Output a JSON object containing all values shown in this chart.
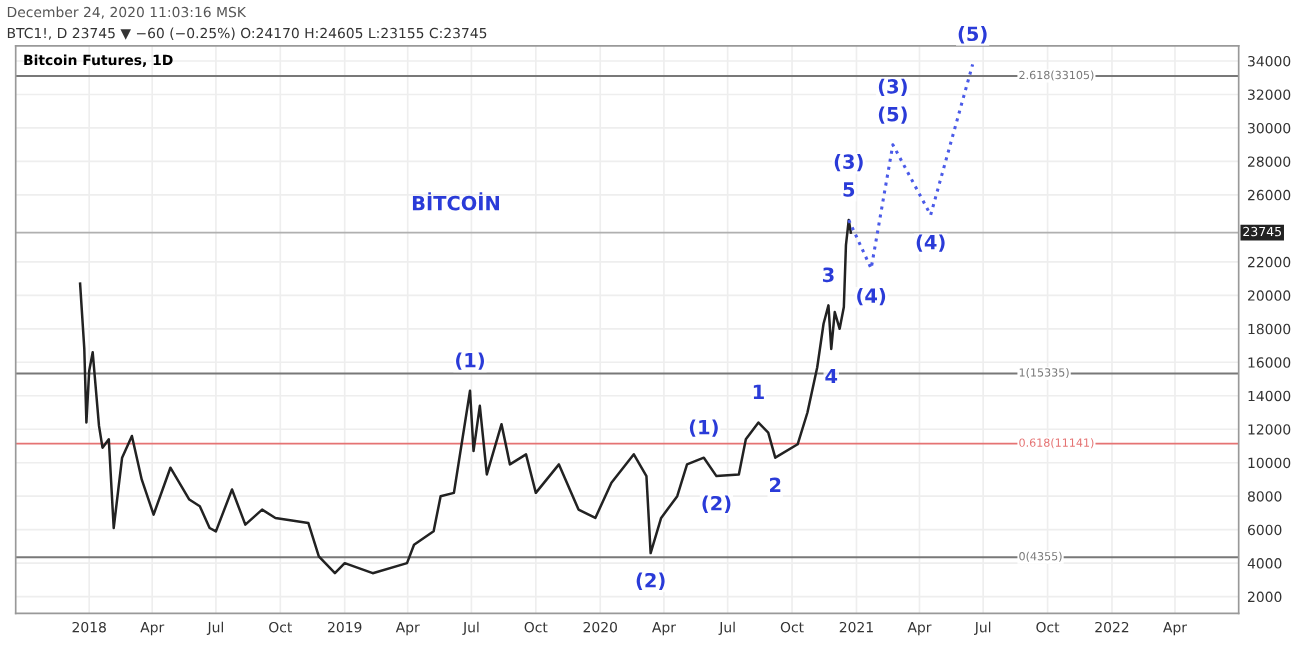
{
  "chart_data": {
    "type": "line",
    "title": "Bitcoin Futures, 1D",
    "subtitle": "BTC1!, D 23745 ▼ −60 (−0.25%) O:24170 H:24605 L:23155 C:23745",
    "xlim": [
      "2017-09-18",
      "2022-07-01"
    ],
    "ylim": [
      1000,
      34900
    ],
    "xticks": [
      {
        "value": "2018-01-01",
        "label": "2018"
      },
      {
        "value": "2018-04-01",
        "label": "Apr"
      },
      {
        "value": "2018-07-01",
        "label": "Jul"
      },
      {
        "value": "2018-10-01",
        "label": "Oct"
      },
      {
        "value": "2019-01-01",
        "label": "2019"
      },
      {
        "value": "2019-04-01",
        "label": "Apr"
      },
      {
        "value": "2019-07-01",
        "label": "Jul"
      },
      {
        "value": "2019-10-01",
        "label": "Oct"
      },
      {
        "value": "2020-01-01",
        "label": "2020"
      },
      {
        "value": "2020-04-01",
        "label": "Apr"
      },
      {
        "value": "2020-07-01",
        "label": "Jul"
      },
      {
        "value": "2020-10-01",
        "label": "Oct"
      },
      {
        "value": "2021-01-01",
        "label": "2021"
      },
      {
        "value": "2021-04-01",
        "label": "Apr"
      },
      {
        "value": "2021-07-01",
        "label": "Jul"
      },
      {
        "value": "2021-10-01",
        "label": "Oct"
      },
      {
        "value": "2022-01-01",
        "label": "2022"
      },
      {
        "value": "2022-04-01",
        "label": "Apr"
      }
    ],
    "yticks": [
      2000,
      4000,
      6000,
      8000,
      10000,
      12000,
      14000,
      16000,
      18000,
      20000,
      22000,
      26000,
      28000,
      30000,
      32000,
      34000
    ],
    "grid": true,
    "series": [
      {
        "color": "#222222",
        "line_style": "solid",
        "x": [
          "2017-12-19",
          "2017-12-25",
          "2017-12-28",
          "2018-01-01",
          "2018-01-06",
          "2018-01-15",
          "2018-01-20",
          "2018-01-29",
          "2018-02-05",
          "2018-02-17",
          "2018-03-03",
          "2018-03-17",
          "2018-04-03",
          "2018-04-27",
          "2018-05-24",
          "2018-06-08",
          "2018-06-22",
          "2018-07-01",
          "2018-07-24",
          "2018-08-12",
          "2018-09-05",
          "2018-09-24",
          "2018-11-10",
          "2018-11-25",
          "2018-12-18",
          "2019-01-01",
          "2019-02-10",
          "2019-03-31",
          "2019-04-10",
          "2019-05-08",
          "2019-05-18",
          "2019-06-06",
          "2019-06-29",
          "2019-07-04",
          "2019-07-13",
          "2019-07-23",
          "2019-08-13",
          "2019-08-25",
          "2019-09-17",
          "2019-10-01",
          "2019-11-03",
          "2019-12-01",
          "2019-12-25",
          "2020-01-17",
          "2020-02-18",
          "2020-03-07",
          "2020-03-13",
          "2020-03-28",
          "2020-04-20",
          "2020-05-04",
          "2020-05-28",
          "2020-06-15",
          "2020-07-17",
          "2020-07-27",
          "2020-08-14",
          "2020-08-28",
          "2020-09-07",
          "2020-10-09",
          "2020-10-23",
          "2020-11-06",
          "2020-11-15",
          "2020-11-22",
          "2020-11-26",
          "2020-12-01",
          "2020-12-08",
          "2020-12-14",
          "2020-12-17",
          "2020-12-21",
          "2020-12-24"
        ],
        "values": [
          20700,
          16800,
          12400,
          15500,
          16600,
          12200,
          10900,
          11400,
          6100,
          10300,
          11600,
          9000,
          6900,
          9700,
          7800,
          7400,
          6100,
          5900,
          8400,
          6300,
          7200,
          6700,
          6400,
          4400,
          3400,
          4000,
          3400,
          4000,
          5100,
          5900,
          8000,
          8200,
          14300,
          10700,
          13400,
          9300,
          12300,
          9900,
          10500,
          8200,
          9900,
          7200,
          6700,
          8800,
          10500,
          9200,
          4600,
          6700,
          8000,
          9900,
          10300,
          9200,
          9300,
          11400,
          12400,
          11800,
          10300,
          11100,
          13000,
          15700,
          18300,
          19400,
          16800,
          19000,
          18000,
          19300,
          23000,
          24500,
          23745
        ]
      },
      {
        "color": "#4a5ae8",
        "line_style": "dotted",
        "x": [
          "2020-12-21",
          "2021-01-22",
          "2021-02-22",
          "2021-04-17",
          "2021-06-16"
        ],
        "values": [
          24500,
          21600,
          29000,
          24800,
          33800
        ]
      }
    ],
    "ref_lines": [
      {
        "axis": "y",
        "value": 33105,
        "label": "2.618(33105)",
        "color": "#787878"
      },
      {
        "axis": "y",
        "value": 15335,
        "label": "1(15335)",
        "color": "#787878"
      },
      {
        "axis": "y",
        "value": 11141,
        "label": "0.618(11141)",
        "color": "#e57373"
      },
      {
        "axis": "y",
        "value": 4355,
        "label": "0(4355)",
        "color": "#787878"
      },
      {
        "axis": "y",
        "value": 23745,
        "label": "23745",
        "color": "#b0b0b0"
      }
    ],
    "annotations": [
      "December 24, 2020 11:03:16 MSK",
      "BİTCOİN",
      {
        "text": "(1)",
        "x": "2019-06-29",
        "y": 14300
      },
      {
        "text": "(2)",
        "x": "2020-03-13",
        "y": 4600
      },
      {
        "text": "(1)",
        "x": "2020-05-28",
        "y": 10300
      },
      {
        "text": "(2)",
        "x": "2020-06-15",
        "y": 9200
      },
      {
        "text": "1",
        "x": "2020-08-14",
        "y": 12400
      },
      {
        "text": "2",
        "x": "2020-09-07",
        "y": 10300
      },
      {
        "text": "3",
        "x": "2020-11-22",
        "y": 19400
      },
      {
        "text": "4",
        "x": "2020-11-26",
        "y": 16800
      },
      {
        "text": "5",
        "x": "2020-12-21",
        "y": 24500
      },
      {
        "text": "(3)",
        "x": "2020-12-21",
        "y": 24500
      },
      {
        "text": "(4)",
        "x": "2021-01-22",
        "y": 21600
      },
      {
        "text": "(5)",
        "x": "2021-02-22",
        "y": 29000
      },
      {
        "text": "(3)",
        "x": "2021-02-22",
        "y": 29000
      },
      {
        "text": "(4)",
        "x": "2021-04-17",
        "y": 24800
      },
      {
        "text": "(5)",
        "x": "2021-06-16",
        "y": 33800
      }
    ]
  }
}
